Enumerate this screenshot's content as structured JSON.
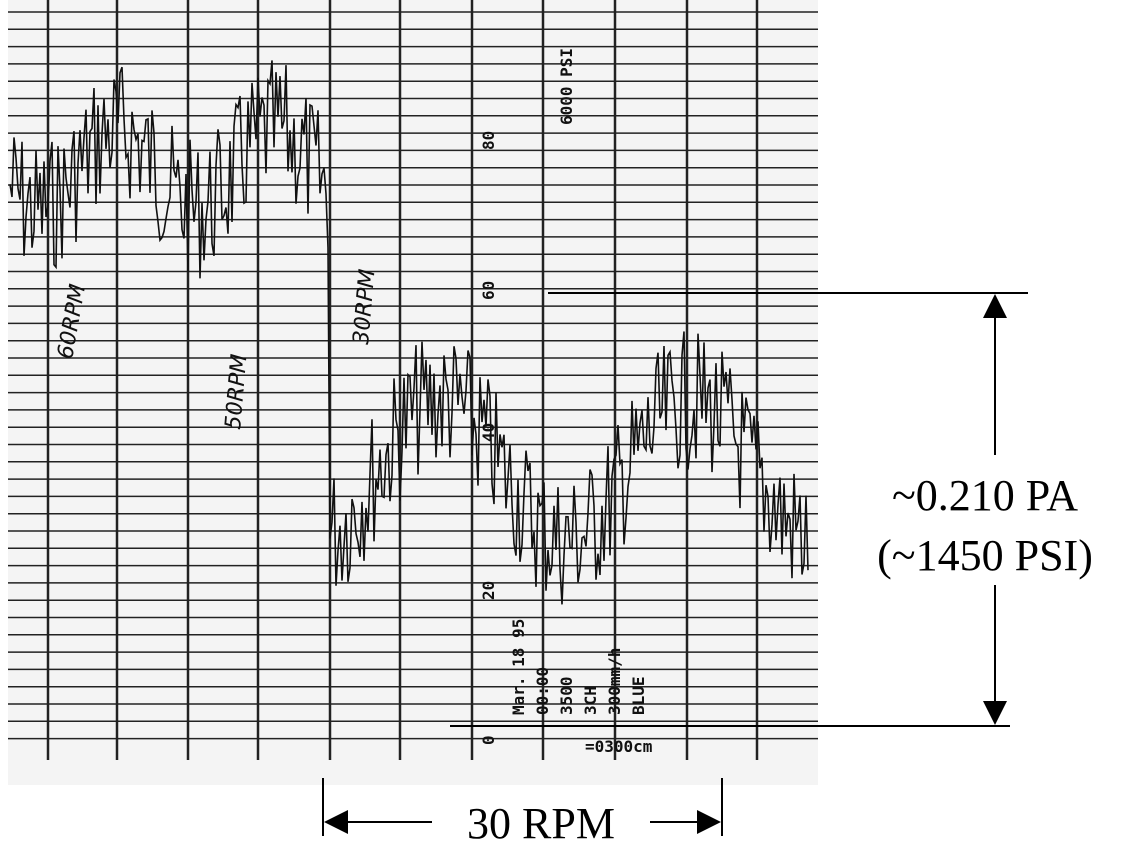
{
  "chart_labels": {
    "speeds": [
      "60RPM",
      "50RPM",
      "30RPM"
    ],
    "full_scale": "6000 PSI",
    "scale": [
      "80",
      "60",
      "40",
      "20",
      "0"
    ],
    "recorder": [
      "Mar. 18 95",
      "00:00",
      "3500",
      "3CH",
      "300mm/h",
      "BLUE"
    ],
    "footer": "=0300cm"
  },
  "annotations": {
    "pressure": "~0.210 PA",
    "pressure_psi": "(~1450 PSI)",
    "speed": "30 RPM"
  }
}
